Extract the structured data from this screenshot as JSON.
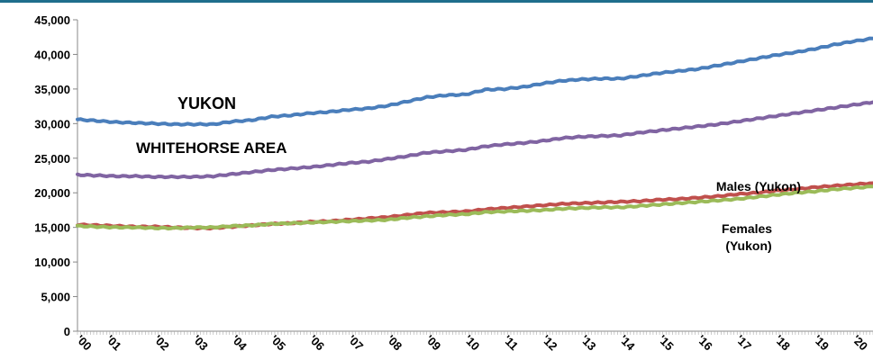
{
  "chart_data": {
    "type": "line",
    "title": "",
    "xlabel": "",
    "ylabel": "",
    "x_start": 2000,
    "x_end": 2020.5,
    "ylim": [
      0,
      45000
    ],
    "yticks": [
      0,
      5000,
      10000,
      15000,
      20000,
      25000,
      30000,
      35000,
      40000,
      45000
    ],
    "ytick_labels": [
      "0",
      "5,000",
      "10,000",
      "15,000",
      "20,000",
      "25,000",
      "30,000",
      "35,000",
      "40,000",
      "45,000"
    ],
    "xtick_labels": [
      "'00",
      "'01",
      "'02",
      "'03",
      "'04",
      "'05",
      "'06",
      "'07",
      "'08",
      "'09",
      "'10",
      "'11",
      "'12",
      "'13",
      "'14",
      "'15",
      "'16",
      "'17",
      "'18",
      "'19",
      "'20"
    ],
    "grid": false,
    "top_rule_color": "#1f6e8c",
    "series": [
      {
        "name": "YUKON",
        "color": "#4a7ebb",
        "x": [
          2000,
          2000.5,
          2001,
          2001.5,
          2002,
          2002.5,
          2003,
          2003.5,
          2004,
          2004.5,
          2005,
          2005.5,
          2006,
          2006.5,
          2007,
          2007.5,
          2008,
          2008.5,
          2009,
          2009.5,
          2010,
          2010.5,
          2011,
          2011.5,
          2012,
          2012.5,
          2013,
          2013.5,
          2014,
          2014.5,
          2015,
          2015.5,
          2016,
          2016.5,
          2017,
          2017.5,
          2018,
          2018.5,
          2019,
          2019.5,
          2020,
          2020.5
        ],
        "values": [
          30600,
          30400,
          30200,
          30100,
          30000,
          29900,
          29900,
          29900,
          30300,
          30500,
          31000,
          31200,
          31500,
          31700,
          32000,
          32200,
          32600,
          33200,
          33800,
          34100,
          34200,
          34900,
          35000,
          35300,
          35800,
          36200,
          36400,
          36500,
          36500,
          36900,
          37300,
          37600,
          37900,
          38400,
          38900,
          39400,
          39900,
          40300,
          40800,
          41400,
          41900,
          42300
        ]
      },
      {
        "name": "WHITEHORSE AREA",
        "color": "#8064a2",
        "x": [
          2000,
          2000.5,
          2001,
          2001.5,
          2002,
          2002.5,
          2003,
          2003.5,
          2004,
          2004.5,
          2005,
          2005.5,
          2006,
          2006.5,
          2007,
          2007.5,
          2008,
          2008.5,
          2009,
          2009.5,
          2010,
          2010.5,
          2011,
          2011.5,
          2012,
          2012.5,
          2013,
          2013.5,
          2014,
          2014.5,
          2015,
          2015.5,
          2016,
          2016.5,
          2017,
          2017.5,
          2018,
          2018.5,
          2019,
          2019.5,
          2020,
          2020.5
        ],
        "values": [
          22600,
          22500,
          22400,
          22400,
          22300,
          22300,
          22300,
          22400,
          22700,
          23000,
          23300,
          23500,
          23700,
          24000,
          24300,
          24500,
          24900,
          25300,
          25800,
          26000,
          26200,
          26700,
          27000,
          27200,
          27500,
          27900,
          28100,
          28200,
          28300,
          28700,
          29000,
          29300,
          29600,
          29900,
          30300,
          30700,
          31100,
          31500,
          31900,
          32300,
          32700,
          33100
        ]
      },
      {
        "name": "Males (Yukon)",
        "color": "#c0504d",
        "x": [
          2000,
          2000.5,
          2001,
          2001.5,
          2002,
          2002.5,
          2003,
          2003.5,
          2004,
          2004.5,
          2005,
          2005.5,
          2006,
          2006.5,
          2007,
          2007.5,
          2008,
          2008.5,
          2009,
          2009.5,
          2010,
          2010.5,
          2011,
          2011.5,
          2012,
          2012.5,
          2013,
          2013.5,
          2014,
          2014.5,
          2015,
          2015.5,
          2016,
          2016.5,
          2017,
          2017.5,
          2018,
          2018.5,
          2019,
          2019.5,
          2020,
          2020.5
        ],
        "values": [
          15400,
          15300,
          15200,
          15100,
          15100,
          15000,
          14900,
          14900,
          15100,
          15300,
          15500,
          15600,
          15800,
          15900,
          16100,
          16300,
          16500,
          16800,
          17100,
          17200,
          17300,
          17600,
          17800,
          18000,
          18200,
          18400,
          18500,
          18600,
          18700,
          18800,
          19000,
          19100,
          19300,
          19500,
          19800,
          20000,
          20300,
          20500,
          20800,
          21000,
          21200,
          21400
        ]
      },
      {
        "name": "Females (Yukon)",
        "color": "#9bbb59",
        "x": [
          2000,
          2000.5,
          2001,
          2001.5,
          2002,
          2002.5,
          2003,
          2003.5,
          2004,
          2004.5,
          2005,
          2005.5,
          2006,
          2006.5,
          2007,
          2007.5,
          2008,
          2008.5,
          2009,
          2009.5,
          2010,
          2010.5,
          2011,
          2011.5,
          2012,
          2012.5,
          2013,
          2013.5,
          2014,
          2014.5,
          2015,
          2015.5,
          2016,
          2016.5,
          2017,
          2017.5,
          2018,
          2018.5,
          2019,
          2019.5,
          2020,
          2020.5
        ],
        "values": [
          15200,
          15100,
          15000,
          15000,
          14900,
          14900,
          15000,
          15000,
          15200,
          15300,
          15500,
          15600,
          15700,
          15800,
          15900,
          16000,
          16100,
          16400,
          16600,
          16800,
          16900,
          17200,
          17300,
          17400,
          17500,
          17700,
          17800,
          17900,
          17900,
          18100,
          18300,
          18500,
          18700,
          18900,
          19100,
          19400,
          19700,
          20000,
          20200,
          20500,
          20700,
          20900
        ]
      }
    ],
    "annotations": [
      {
        "text": "YUKON"
      },
      {
        "text": "WHITEHORSE AREA"
      },
      {
        "text": "Males (Yukon)"
      },
      {
        "lines": [
          "Females",
          "(Yukon)"
        ]
      }
    ]
  }
}
